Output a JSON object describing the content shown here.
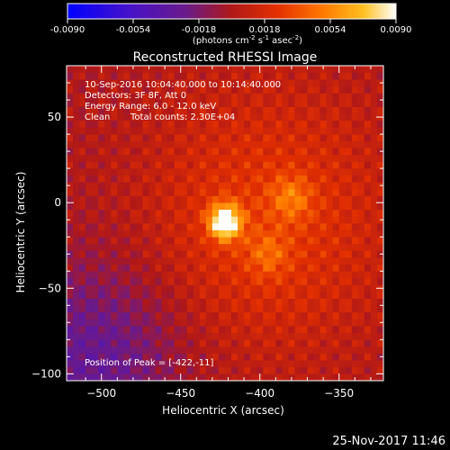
{
  "chart_data": {
    "type": "heatmap",
    "title": "Reconstructed RHESSI Image",
    "xlabel": "Heliocentric X (arcsec)",
    "ylabel": "Heliocentric Y (arcsec)",
    "xlim": [
      -522,
      -322
    ],
    "ylim": [
      -104,
      80
    ],
    "xticks": [
      -500,
      -450,
      -400,
      -350
    ],
    "yticks": [
      -100,
      -50,
      0,
      50
    ],
    "colorbar": {
      "min": -0.009,
      "max": 0.009,
      "ticks": [
        "-0.0090",
        "-0.0054",
        "-0.0018",
        "0.0018",
        "0.0054",
        "0.0090"
      ],
      "unit_prefix": "(photons cm",
      "unit_exp1": "-2",
      "unit_mid1": " s",
      "unit_exp2": "-1",
      "unit_mid2": " asec",
      "unit_exp3": "-2",
      "unit_suffix": ")",
      "colormap": "fire (blue-purple-red-orange-yellow-white)"
    },
    "annotations": {
      "time_range": "10-Sep-2016 10:04:40.000 to 10:14:40.000",
      "detectors": "Detectors: 3F 8F, Att 0",
      "energy": "Energy Range: 6.0 - 12.0 keV",
      "algorithm": "Clean",
      "total_counts": "Total counts: 2.30E+04",
      "peak": "Position of Peak = [-422,-11]"
    },
    "peak": {
      "x": -422,
      "y": -11,
      "value": 0.009
    },
    "secondary_sources": [
      {
        "x": -380,
        "y": 3,
        "value": 0.0045
      },
      {
        "x": -395,
        "y": -30,
        "value": 0.0035
      }
    ]
  },
  "footer": {
    "timestamp": "25-Nov-2017 11:46"
  },
  "colors": {
    "background": "#000000",
    "text": "#ffffff"
  }
}
